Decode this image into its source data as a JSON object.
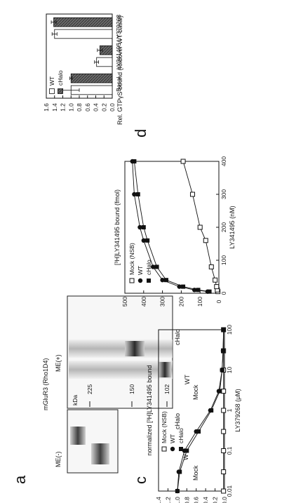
{
  "figure": {
    "panels": {
      "a": "a",
      "b": "b",
      "c": "c",
      "d": "d"
    },
    "western": {
      "title": "mGluR3 (Rho1D4)",
      "group_left": "ME(-)",
      "group_right": "ME(+)",
      "lanes": [
        "Mock",
        "WT",
        "cHalo"
      ],
      "kda_label": "kDa",
      "markers": [
        "225",
        "150",
        "102"
      ]
    }
  },
  "chart_data": [
    {
      "id": "b",
      "type": "scatter",
      "xlabel": "LY341495 (nM)",
      "ylabel": "[³H]LY341495 bound (fmol)",
      "xlim": [
        0,
        400
      ],
      "ylim": [
        0,
        500
      ],
      "xticks": [
        "0",
        "100",
        "200",
        "300",
        "400"
      ],
      "yticks": [
        "0",
        "100",
        "200",
        "300",
        "400",
        "500"
      ],
      "legend": [
        "Mock (NSB)",
        "WT",
        "cHalo"
      ],
      "series": [
        {
          "name": "Mock (NSB)",
          "marker": "open-square",
          "x": [
            5,
            10,
            20,
            40,
            80,
            160,
            200,
            300,
            400
          ],
          "y": [
            5,
            8,
            12,
            20,
            40,
            70,
            100,
            140,
            190
          ]
        },
        {
          "name": "WT",
          "marker": "filled-circle",
          "x": [
            5,
            10,
            20,
            40,
            80,
            160,
            200,
            300,
            400
          ],
          "y": [
            60,
            130,
            210,
            300,
            350,
            400,
            420,
            450,
            460
          ]
        },
        {
          "name": "cHalo",
          "marker": "filled-square",
          "x": [
            5,
            10,
            20,
            40,
            80,
            160,
            200,
            300,
            400
          ],
          "y": [
            50,
            110,
            190,
            280,
            330,
            380,
            400,
            430,
            450
          ]
        }
      ]
    },
    {
      "id": "c",
      "type": "scatter",
      "xscale": "log",
      "xlabel": "LY379268 (μM)",
      "ylabel": "normalized [³H]LY341495 bound",
      "xlim": [
        0.01,
        100
      ],
      "ylim": [
        0,
        1.4
      ],
      "xticks": [
        "0.01",
        "0.1",
        "1",
        "10",
        "100"
      ],
      "yticks": [
        "0.0",
        "0.2",
        "0.4",
        "0.6",
        "0.8",
        "1.0",
        "1.2",
        "1.4"
      ],
      "legend": [
        "Mock (NSB)",
        "WT",
        "cHalo"
      ],
      "series": [
        {
          "name": "Mock (NSB)",
          "marker": "open-square",
          "x": [
            0.01,
            0.03,
            0.1,
            0.3,
            1,
            3,
            10,
            30,
            100
          ],
          "y": [
            0.02,
            0.02,
            0.02,
            0.02,
            0.02,
            0.02,
            0.02,
            0.02,
            0.02
          ]
        },
        {
          "name": "WT",
          "marker": "filled-circle",
          "x": [
            0.01,
            0.03,
            0.1,
            0.3,
            1,
            3,
            10,
            30,
            100
          ],
          "y": [
            1.0,
            0.97,
            0.85,
            0.6,
            0.3,
            0.12,
            0.05,
            0.03,
            0.02
          ]
        },
        {
          "name": "cHalo",
          "marker": "filled-square",
          "x": [
            0.01,
            0.03,
            0.1,
            0.3,
            1,
            3,
            10,
            30,
            100
          ],
          "y": [
            1.0,
            0.95,
            0.8,
            0.55,
            0.28,
            0.1,
            0.05,
            0.03,
            0.02
          ]
        }
      ]
    },
    {
      "id": "d",
      "type": "bar",
      "ylabel": "Rel. GTPγS bound (foldover WT basal)",
      "ylim": [
        0,
        1.6
      ],
      "yticks": [
        "0.0",
        "0.2",
        "0.4",
        "0.6",
        "0.8",
        "1.0",
        "1.2",
        "1.4",
        "1.6"
      ],
      "categories": [
        "Basal",
        "LY341495",
        "LY379268"
      ],
      "legend": [
        "WT",
        "cHalo"
      ],
      "series": [
        {
          "name": "WT",
          "values": [
            1.0,
            0.38,
            1.4
          ],
          "errors": [
            0.2,
            0.05,
            0.06
          ],
          "color": "#ffffff"
        },
        {
          "name": "cHalo",
          "values": [
            1.0,
            0.3,
            1.42
          ],
          "errors": [
            0.03,
            0.06,
            0.06
          ],
          "color": "#555555"
        }
      ]
    }
  ]
}
